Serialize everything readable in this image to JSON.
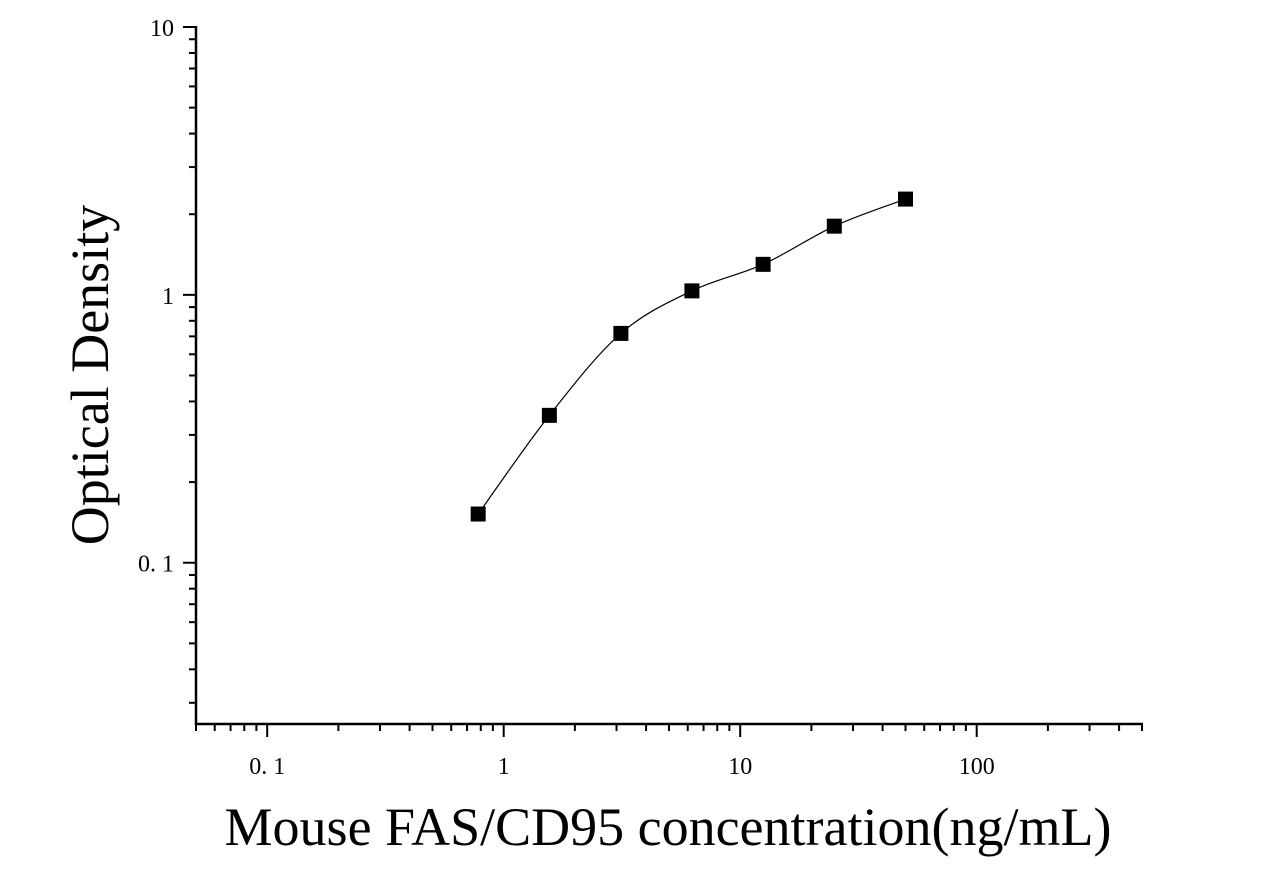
{
  "chart_data": {
    "type": "scatter",
    "xlabel": "Mouse FAS/CD95 concentration(ng/mL)",
    "ylabel": "Optical Density",
    "x_scale": "log",
    "y_scale": "log",
    "xlim": [
      0.05,
      500
    ],
    "ylim": [
      0.025,
      10
    ],
    "x_ticks": [
      {
        "value": 0.1,
        "label": "0. 1"
      },
      {
        "value": 1,
        "label": "1"
      },
      {
        "value": 10,
        "label": "10"
      },
      {
        "value": 100,
        "label": "100"
      }
    ],
    "y_ticks": [
      {
        "value": 0.1,
        "label": "0. 1"
      },
      {
        "value": 1,
        "label": "1"
      },
      {
        "value": 10,
        "label": "10"
      }
    ],
    "grid": false,
    "fit_curve": true,
    "series": [
      {
        "x": [
          0.78,
          1.56,
          3.13,
          6.25,
          12.5,
          25,
          50
        ],
        "y": [
          0.152,
          0.355,
          0.718,
          1.035,
          1.3,
          1.805,
          2.278
        ]
      }
    ]
  }
}
